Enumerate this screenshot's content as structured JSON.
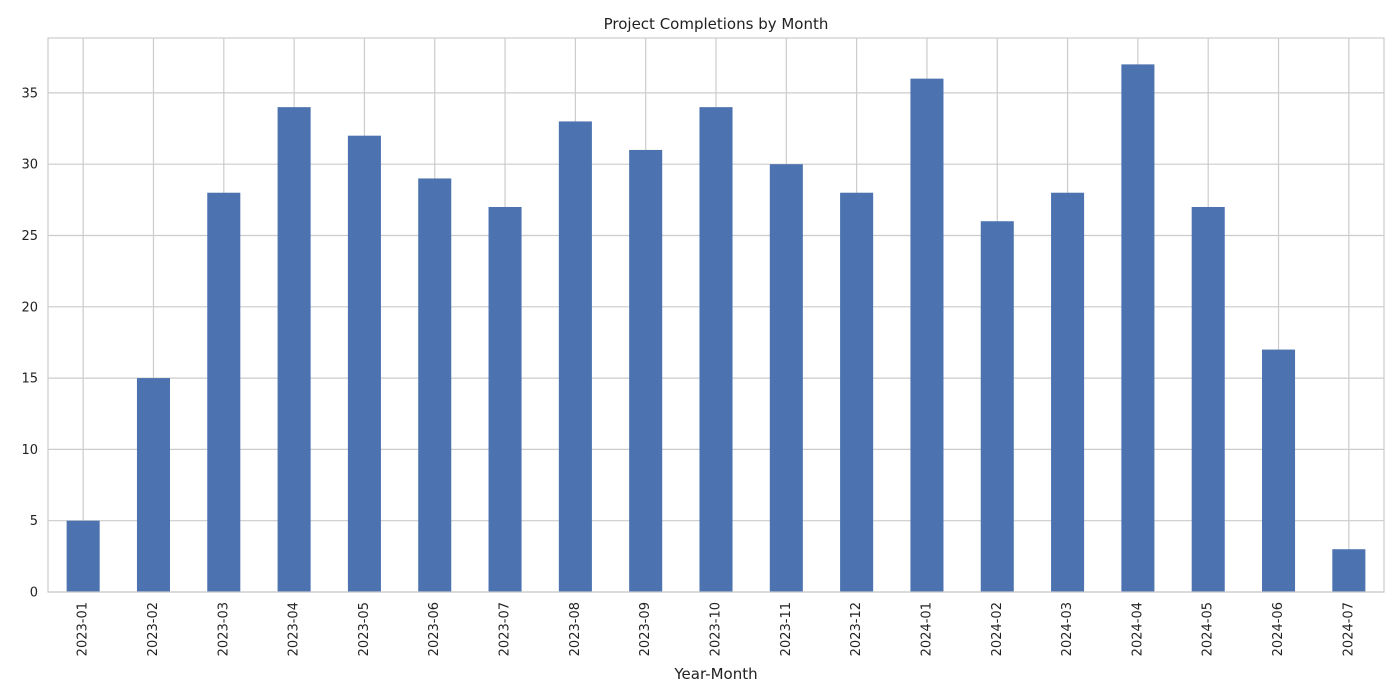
{
  "chart_data": {
    "type": "bar",
    "title": "Project Completions by Month",
    "xlabel": "Year-Month",
    "ylabel": "",
    "categories": [
      "2023-01",
      "2023-02",
      "2023-03",
      "2023-04",
      "2023-05",
      "2023-06",
      "2023-07",
      "2023-08",
      "2023-09",
      "2023-10",
      "2023-11",
      "2023-12",
      "2024-01",
      "2024-02",
      "2024-03",
      "2024-04",
      "2024-05",
      "2024-06",
      "2024-07"
    ],
    "values": [
      5,
      15,
      28,
      34,
      32,
      29,
      27,
      33,
      31,
      34,
      30,
      28,
      36,
      26,
      28,
      37,
      27,
      17,
      3
    ],
    "ylim": [
      0,
      38.85
    ],
    "yticks": [
      0,
      5,
      10,
      15,
      20,
      25,
      30,
      35
    ],
    "grid": true,
    "legend": "none",
    "colors": {
      "bar": "#4c72b0",
      "grid": "#cccccc",
      "axes": "#cccccc",
      "text": "#222222"
    }
  }
}
